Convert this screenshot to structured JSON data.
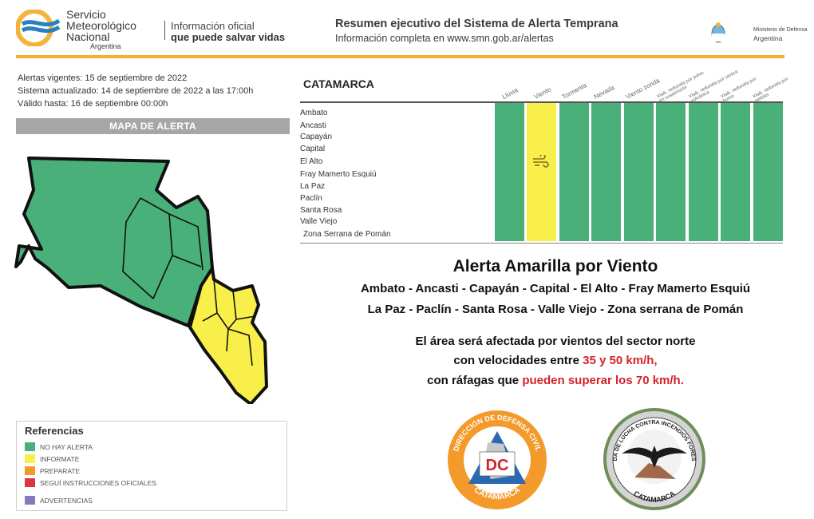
{
  "header": {
    "org_line1": "Servicio",
    "org_line2": "Meteorológico",
    "org_line3": "Nacional",
    "org_line4": "Argentina",
    "tagline1": "Información oficial",
    "tagline2": "que puede salvar vidas",
    "summary_title": "Resumen ejecutivo del Sistema de Alerta Temprana",
    "summary_sub": "Información completa en www.smn.gob.ar/alertas",
    "ministry_line1": "Ministerio de Defensa",
    "ministry_line2": "Argentina"
  },
  "info": {
    "vigentes": "Alertas vigentes: 15 de septiembre de 2022",
    "actualizado": "Sistema actualizado: 14 de septiembre de 2022 a las 17:00h",
    "valido": "Válido hasta: 16 de septiembre 00:00h"
  },
  "map": {
    "title": "MAPA DE ALERTA"
  },
  "references": {
    "title": "Referencias",
    "items": [
      {
        "label": "NO HAY ALERTA",
        "color": "#49b07a"
      },
      {
        "label": "INFORMATE",
        "color": "#f8ef4a"
      },
      {
        "label": "PREPARATE",
        "color": "#f09a2c"
      },
      {
        "label": "SEGUÍ INSTRUCCIONES OFICIALES",
        "color": "#d9363e"
      },
      {
        "label": "ADVERTENCIAS",
        "color": "#8679c2"
      }
    ]
  },
  "table": {
    "province": "CATAMARCA",
    "columns": [
      "Lluvia",
      "Viento",
      "Tormenta",
      "Nevada",
      "Viento zonda",
      "Visib. reducida por polvo en suspensión",
      "Visib. reducida por ceniza volcánica",
      "Visib. reducida por humo",
      "Visib. reducida por nieblas"
    ],
    "active_column": "Viento",
    "rows": [
      "Ambato",
      "Ancasti",
      "Capayán",
      "Capital",
      "El Alto",
      "Fray Mamerto Esquiú",
      "La Paz",
      "Paclín",
      "Santa Rosa",
      "Valle Viejo",
      "Zona Serrana de Pomán"
    ],
    "colors": {
      "green": "#49b07a",
      "yellow": "#f8ef4a"
    }
  },
  "alert": {
    "title": "Alerta Amarilla por Viento",
    "zones1": "Ambato - Ancasti - Capayán - Capital - El Alto - Fray Mamerto Esquiú",
    "zones2": "La Paz - Paclín - Santa Rosa - Valle Viejo - Zona serrana de Pomán",
    "desc1": "El área será afectada por vientos del sector norte",
    "desc2_pre": "con velocidades entre ",
    "desc2_red": "35 y 50 km/h,",
    "desc3_pre": "con ráfagas que ",
    "desc3_red": "pueden superar los 70 km/h."
  },
  "badges": {
    "civil_top": "DIRECCIÓN DE DEFENSA CIVIL",
    "civil_mid": "DC",
    "civil_bottom": "CATAMARCA",
    "brigade_top": "BRIGADA DE LUCHA CONTRA INCENDIOS FORESTALES",
    "brigade_bottom": "CATAMARCA"
  }
}
